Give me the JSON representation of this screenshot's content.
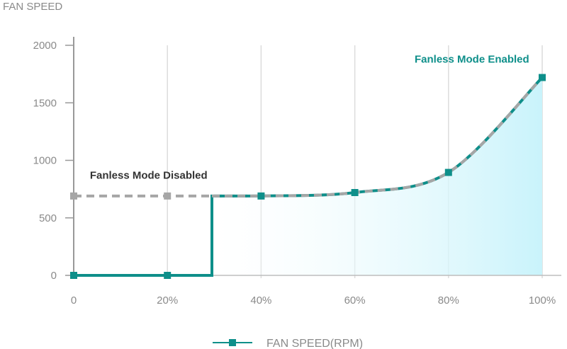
{
  "chart_data": {
    "type": "line",
    "title": "FAN SPEED",
    "x_tick_labels": [
      "0",
      "20%",
      "40%",
      "60%",
      "80%",
      "100%"
    ],
    "y_tick_labels": [
      "0",
      "500",
      "1000",
      "1500",
      "2000"
    ],
    "xlim": [
      0,
      100
    ],
    "ylim": [
      0,
      2000
    ],
    "grid": "vertical",
    "legend_position": "bottom-center",
    "series": [
      {
        "name": "FAN SPEED(RPM)",
        "color": "#0e8f8a",
        "style": "solid",
        "points": [
          {
            "x": 0,
            "y": 0
          },
          {
            "x": 20,
            "y": 0
          },
          {
            "x": 29.5,
            "y": 0
          },
          {
            "x": 29.5,
            "y": 690
          },
          {
            "x": 40,
            "y": 690
          },
          {
            "x": 60,
            "y": 720
          },
          {
            "x": 80,
            "y": 895
          },
          {
            "x": 100,
            "y": 1720
          }
        ],
        "markers": [
          0,
          20,
          40,
          60,
          80,
          100
        ]
      },
      {
        "color": "#a6a6a6",
        "style": "dashed",
        "points": [
          {
            "x": 0,
            "y": 690
          },
          {
            "x": 20,
            "y": 690
          },
          {
            "x": 40,
            "y": 690
          },
          {
            "x": 60,
            "y": 720
          },
          {
            "x": 80,
            "y": 895
          },
          {
            "x": 100,
            "y": 1720
          }
        ],
        "markers": [
          0,
          20
        ]
      }
    ],
    "annotations": [
      {
        "text": "Fanless Mode Enabled",
        "x": 85,
        "y": 1850,
        "color": "#0e8f8a"
      },
      {
        "text": "Fanless Mode Disabled",
        "x": 16,
        "y": 840,
        "color": "#333333"
      }
    ],
    "fill_color": "#c9f3fb"
  }
}
